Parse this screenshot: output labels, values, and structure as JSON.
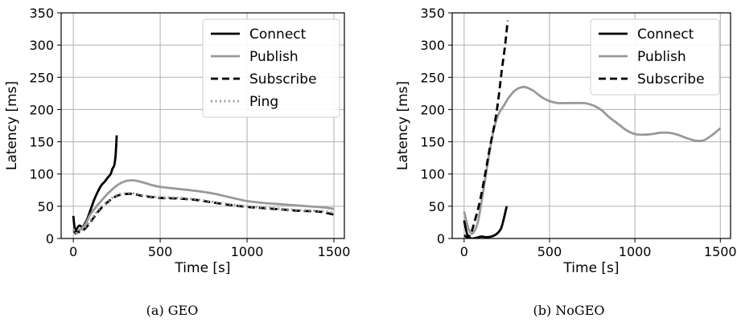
{
  "chart_data": [
    {
      "type": "line",
      "caption": "(a) GEO",
      "xlabel": "Time [s]",
      "ylabel": "Latency [ms]",
      "xlim": [
        -70,
        1560
      ],
      "ylim": [
        0,
        350
      ],
      "xticks": [
        0,
        500,
        1000,
        1500
      ],
      "yticks": [
        0,
        50,
        100,
        150,
        200,
        250,
        300,
        350
      ],
      "grid": true,
      "legend_position": "top-right",
      "series": [
        {
          "name": "Connect",
          "color": "#000000",
          "style": "solid",
          "points": [
            [
              0,
              35
            ],
            [
              5,
              22
            ],
            [
              12,
              8
            ],
            [
              20,
              15
            ],
            [
              35,
              20
            ],
            [
              50,
              18
            ],
            [
              60,
              20
            ],
            [
              80,
              30
            ],
            [
              100,
              45
            ],
            [
              120,
              60
            ],
            [
              140,
              72
            ],
            [
              160,
              82
            ],
            [
              180,
              88
            ],
            [
              200,
              95
            ],
            [
              215,
              100
            ],
            [
              225,
              108
            ],
            [
              235,
              113
            ],
            [
              242,
              125
            ],
            [
              246,
              140
            ],
            [
              250,
              160
            ]
          ]
        },
        {
          "name": "Publish",
          "color": "#999999",
          "style": "solid",
          "points": [
            [
              0,
              15
            ],
            [
              20,
              8
            ],
            [
              40,
              14
            ],
            [
              70,
              22
            ],
            [
              100,
              38
            ],
            [
              150,
              55
            ],
            [
              200,
              70
            ],
            [
              250,
              82
            ],
            [
              300,
              89
            ],
            [
              350,
              90
            ],
            [
              400,
              87
            ],
            [
              450,
              83
            ],
            [
              500,
              80
            ],
            [
              600,
              77
            ],
            [
              700,
              74
            ],
            [
              800,
              70
            ],
            [
              900,
              64
            ],
            [
              1000,
              58
            ],
            [
              1100,
              55
            ],
            [
              1200,
              53
            ],
            [
              1300,
              51
            ],
            [
              1400,
              49
            ],
            [
              1450,
              48
            ],
            [
              1500,
              46
            ]
          ]
        },
        {
          "name": "Subscribe",
          "color": "#000000",
          "style": "dashed",
          "points": [
            [
              0,
              10
            ],
            [
              20,
              12
            ],
            [
              40,
              10
            ],
            [
              70,
              16
            ],
            [
              100,
              26
            ],
            [
              150,
              44
            ],
            [
              200,
              57
            ],
            [
              250,
              66
            ],
            [
              300,
              69
            ],
            [
              350,
              69
            ],
            [
              400,
              66
            ],
            [
              500,
              63
            ],
            [
              600,
              62
            ],
            [
              700,
              60
            ],
            [
              800,
              56
            ],
            [
              900,
              52
            ],
            [
              1000,
              49
            ],
            [
              1100,
              47
            ],
            [
              1200,
              45
            ],
            [
              1300,
              43
            ],
            [
              1400,
              42
            ],
            [
              1450,
              40
            ],
            [
              1500,
              37
            ]
          ]
        },
        {
          "name": "Ping",
          "color": "#999999",
          "style": "dotted",
          "points": [
            [
              0,
              12
            ],
            [
              20,
              14
            ],
            [
              40,
              12
            ],
            [
              70,
              18
            ],
            [
              100,
              28
            ],
            [
              150,
              46
            ],
            [
              200,
              58
            ],
            [
              250,
              67
            ],
            [
              300,
              70
            ],
            [
              350,
              70
            ],
            [
              400,
              67
            ],
            [
              500,
              64
            ],
            [
              600,
              63
            ],
            [
              700,
              61
            ],
            [
              800,
              57
            ],
            [
              900,
              53
            ],
            [
              1000,
              50
            ],
            [
              1100,
              48
            ],
            [
              1200,
              46
            ],
            [
              1300,
              44
            ],
            [
              1400,
              43
            ],
            [
              1450,
              42
            ],
            [
              1500,
              40
            ]
          ]
        }
      ]
    },
    {
      "type": "line",
      "caption": "(b) NoGEO",
      "xlabel": "Time [s]",
      "ylabel": "Latency [ms]",
      "xlim": [
        -70,
        1560
      ],
      "ylim": [
        0,
        350
      ],
      "xticks": [
        0,
        500,
        1000,
        1500
      ],
      "yticks": [
        0,
        50,
        100,
        150,
        200,
        250,
        300,
        350
      ],
      "grid": true,
      "legend_position": "top-right",
      "series": [
        {
          "name": "Connect",
          "color": "#000000",
          "style": "solid",
          "points": [
            [
              0,
              28
            ],
            [
              10,
              15
            ],
            [
              20,
              5
            ],
            [
              40,
              0
            ],
            [
              70,
              1
            ],
            [
              100,
              3
            ],
            [
              130,
              2
            ],
            [
              160,
              3
            ],
            [
              190,
              7
            ],
            [
              215,
              15
            ],
            [
              230,
              28
            ],
            [
              245,
              45
            ],
            [
              250,
              50
            ]
          ]
        },
        {
          "name": "Publish",
          "color": "#999999",
          "style": "solid",
          "points": [
            [
              0,
              42
            ],
            [
              15,
              25
            ],
            [
              30,
              12
            ],
            [
              50,
              8
            ],
            [
              80,
              25
            ],
            [
              110,
              70
            ],
            [
              140,
              120
            ],
            [
              170,
              165
            ],
            [
              200,
              192
            ],
            [
              230,
              205
            ],
            [
              260,
              218
            ],
            [
              300,
              230
            ],
            [
              350,
              235
            ],
            [
              400,
              230
            ],
            [
              450,
              220
            ],
            [
              500,
              213
            ],
            [
              550,
              210
            ],
            [
              600,
              210
            ],
            [
              700,
              210
            ],
            [
              750,
              207
            ],
            [
              800,
              200
            ],
            [
              850,
              188
            ],
            [
              900,
              178
            ],
            [
              950,
              168
            ],
            [
              1000,
              162
            ],
            [
              1050,
              161
            ],
            [
              1100,
              162
            ],
            [
              1150,
              164
            ],
            [
              1200,
              164
            ],
            [
              1250,
              161
            ],
            [
              1300,
              156
            ],
            [
              1350,
              152
            ],
            [
              1400,
              152
            ],
            [
              1450,
              160
            ],
            [
              1500,
              171
            ]
          ]
        },
        {
          "name": "Subscribe",
          "color": "#000000",
          "style": "dashed",
          "points": [
            [
              0,
              5
            ],
            [
              20,
              2
            ],
            [
              40,
              8
            ],
            [
              60,
              25
            ],
            [
              90,
              55
            ],
            [
              120,
              95
            ],
            [
              150,
              140
            ],
            [
              180,
              180
            ],
            [
              200,
              215
            ],
            [
              220,
              260
            ],
            [
              240,
              300
            ],
            [
              255,
              338
            ]
          ]
        }
      ]
    }
  ]
}
